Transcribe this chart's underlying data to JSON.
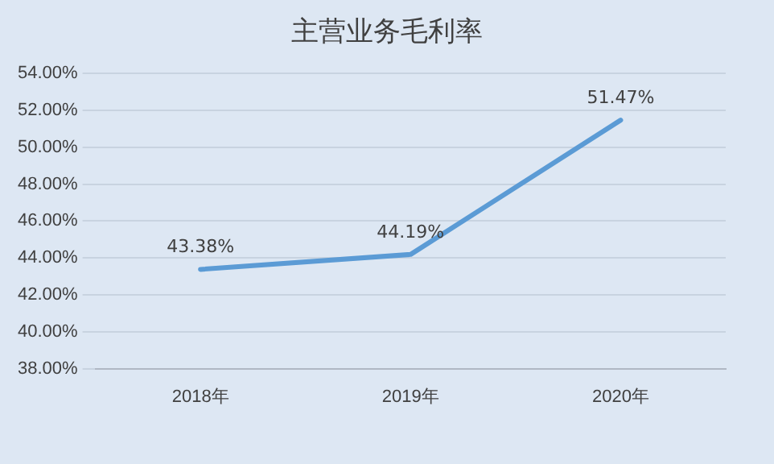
{
  "chart_data": {
    "type": "line",
    "title": "主营业务毛利率",
    "categories": [
      "2018年",
      "2019年",
      "2020年"
    ],
    "series": [
      {
        "color": "#5b9bd5",
        "values": [
          43.38,
          44.19,
          51.47
        ],
        "value_labels": [
          "43.38%",
          "44.19%",
          "51.47%"
        ]
      }
    ],
    "ylim": [
      38,
      54
    ],
    "yticks": [
      {
        "value": 38,
        "label": "38.00%"
      },
      {
        "value": 40,
        "label": "40.00%"
      },
      {
        "value": 42,
        "label": "42.00%"
      },
      {
        "value": 44,
        "label": "44.00%"
      },
      {
        "value": 46,
        "label": "46.00%"
      },
      {
        "value": 48,
        "label": "48.00%"
      },
      {
        "value": 50,
        "label": "50.00%"
      },
      {
        "value": 52,
        "label": "52.00%"
      },
      {
        "value": 54,
        "label": "54.00%"
      }
    ],
    "grid": "y",
    "legend": false,
    "marker": "none",
    "line_style": "solid"
  }
}
